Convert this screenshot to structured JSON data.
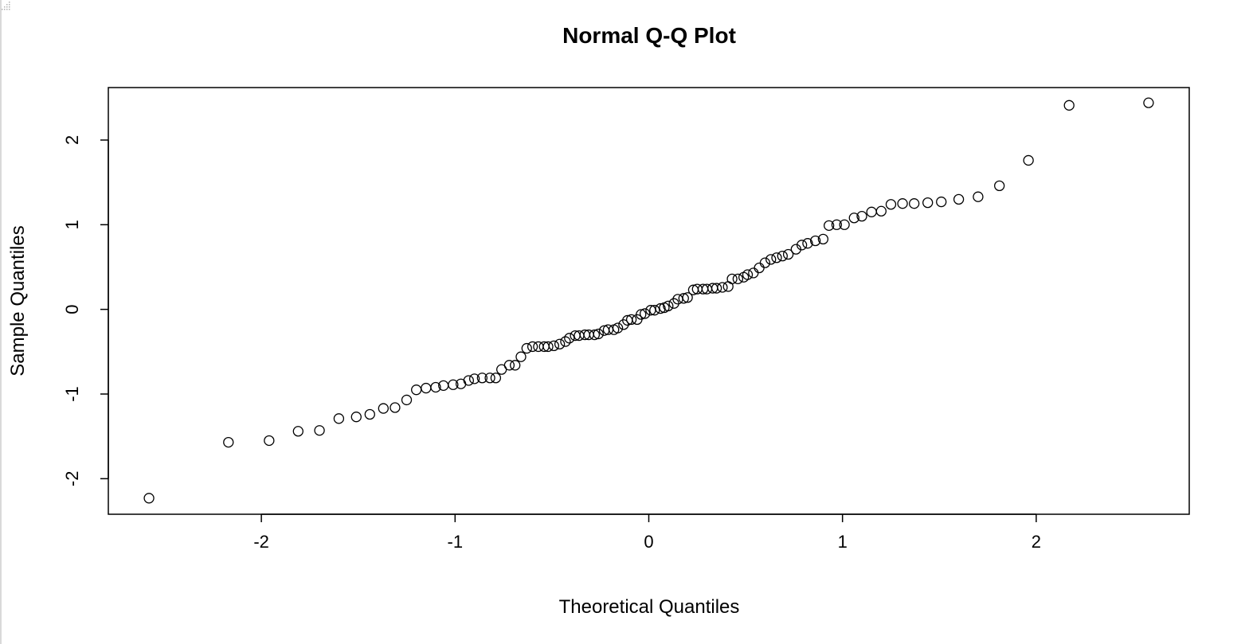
{
  "chart_data": {
    "type": "scatter",
    "title": "Normal Q-Q Plot",
    "xlabel": "Theoretical Quantiles",
    "ylabel": "Sample Quantiles",
    "xlim": [
      -2.79,
      2.79
    ],
    "ylim": [
      -2.42,
      2.62
    ],
    "xticks": [
      -2,
      -1,
      0,
      1,
      2
    ],
    "yticks": [
      -2,
      -1,
      0,
      1,
      2
    ],
    "xtick_labels": [
      "-2",
      "-1",
      "0",
      "1",
      "2"
    ],
    "ytick_labels": [
      "-2",
      "-1",
      "0",
      "1",
      "2"
    ],
    "grid": false,
    "marker": "open-circle",
    "points": [
      [
        -2.58,
        -2.23
      ],
      [
        -2.17,
        -1.57
      ],
      [
        -1.96,
        -1.55
      ],
      [
        -1.81,
        -1.44
      ],
      [
        -1.7,
        -1.43
      ],
      [
        -1.6,
        -1.29
      ],
      [
        -1.51,
        -1.27
      ],
      [
        -1.44,
        -1.24
      ],
      [
        -1.37,
        -1.17
      ],
      [
        -1.31,
        -1.16
      ],
      [
        -1.25,
        -1.07
      ],
      [
        -1.2,
        -0.95
      ],
      [
        -1.15,
        -0.93
      ],
      [
        -1.1,
        -0.92
      ],
      [
        -1.06,
        -0.9
      ],
      [
        -1.01,
        -0.89
      ],
      [
        -0.97,
        -0.88
      ],
      [
        -0.93,
        -0.84
      ],
      [
        -0.9,
        -0.82
      ],
      [
        -0.86,
        -0.81
      ],
      [
        -0.82,
        -0.81
      ],
      [
        -0.79,
        -0.81
      ],
      [
        -0.76,
        -0.71
      ],
      [
        -0.72,
        -0.66
      ],
      [
        -0.69,
        -0.66
      ],
      [
        -0.66,
        -0.56
      ],
      [
        -0.63,
        -0.46
      ],
      [
        -0.6,
        -0.44
      ],
      [
        -0.57,
        -0.44
      ],
      [
        -0.54,
        -0.44
      ],
      [
        -0.52,
        -0.44
      ],
      [
        -0.49,
        -0.43
      ],
      [
        -0.46,
        -0.41
      ],
      [
        -0.43,
        -0.38
      ],
      [
        -0.41,
        -0.34
      ],
      [
        -0.38,
        -0.31
      ],
      [
        -0.36,
        -0.31
      ],
      [
        -0.33,
        -0.3
      ],
      [
        -0.31,
        -0.3
      ],
      [
        -0.28,
        -0.3
      ],
      [
        -0.26,
        -0.29
      ],
      [
        -0.23,
        -0.25
      ],
      [
        -0.21,
        -0.24
      ],
      [
        -0.18,
        -0.24
      ],
      [
        -0.16,
        -0.22
      ],
      [
        -0.13,
        -0.18
      ],
      [
        -0.11,
        -0.13
      ],
      [
        -0.09,
        -0.12
      ],
      [
        -0.06,
        -0.12
      ],
      [
        -0.04,
        -0.06
      ],
      [
        -0.02,
        -0.05
      ],
      [
        0.01,
        -0.01
      ],
      [
        0.03,
        -0.01
      ],
      [
        0.06,
        0.01
      ],
      [
        0.08,
        0.02
      ],
      [
        0.1,
        0.04
      ],
      [
        0.13,
        0.07
      ],
      [
        0.15,
        0.12
      ],
      [
        0.18,
        0.13
      ],
      [
        0.2,
        0.14
      ],
      [
        0.23,
        0.23
      ],
      [
        0.25,
        0.24
      ],
      [
        0.28,
        0.24
      ],
      [
        0.3,
        0.24
      ],
      [
        0.33,
        0.25
      ],
      [
        0.35,
        0.25
      ],
      [
        0.38,
        0.26
      ],
      [
        0.41,
        0.27
      ],
      [
        0.43,
        0.36
      ],
      [
        0.46,
        0.36
      ],
      [
        0.49,
        0.38
      ],
      [
        0.51,
        0.41
      ],
      [
        0.54,
        0.43
      ],
      [
        0.57,
        0.49
      ],
      [
        0.6,
        0.55
      ],
      [
        0.63,
        0.59
      ],
      [
        0.66,
        0.61
      ],
      [
        0.69,
        0.63
      ],
      [
        0.72,
        0.65
      ],
      [
        0.76,
        0.71
      ],
      [
        0.79,
        0.76
      ],
      [
        0.82,
        0.78
      ],
      [
        0.86,
        0.81
      ],
      [
        0.9,
        0.83
      ],
      [
        0.93,
        0.99
      ],
      [
        0.97,
        1.0
      ],
      [
        1.01,
        1.0
      ],
      [
        1.06,
        1.08
      ],
      [
        1.1,
        1.1
      ],
      [
        1.15,
        1.15
      ],
      [
        1.2,
        1.16
      ],
      [
        1.25,
        1.24
      ],
      [
        1.31,
        1.25
      ],
      [
        1.37,
        1.25
      ],
      [
        1.44,
        1.26
      ],
      [
        1.51,
        1.27
      ],
      [
        1.6,
        1.3
      ],
      [
        1.7,
        1.33
      ],
      [
        1.81,
        1.46
      ],
      [
        1.96,
        1.76
      ],
      [
        2.17,
        2.41
      ],
      [
        2.58,
        2.44
      ]
    ]
  }
}
